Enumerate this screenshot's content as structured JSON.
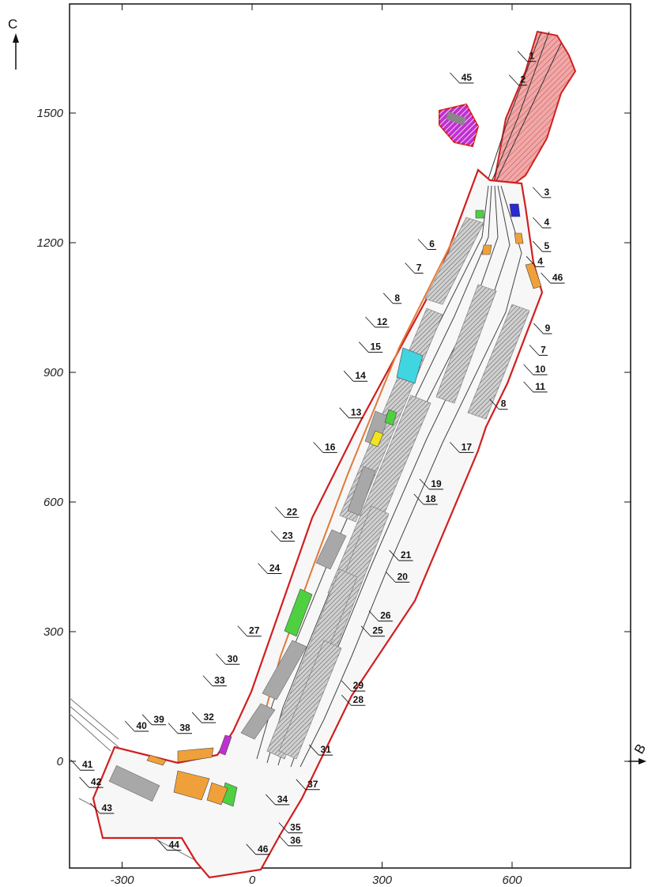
{
  "axes": {
    "x": {
      "ticks": [
        -300,
        0,
        300,
        600
      ],
      "range": [
        -420,
        840
      ]
    },
    "y": {
      "ticks": [
        0,
        300,
        600,
        900,
        1200,
        1500
      ],
      "range": [
        -235,
        1750
      ]
    }
  },
  "compass": {
    "north": "С",
    "east": "В"
  },
  "colors": {
    "boundary": "#d11f1f",
    "red_zone": "#f0a8a8",
    "cyan": "#3fd6e2",
    "blue": "#2a2ad0",
    "orange": "#f0a03a",
    "green": "#4ed040",
    "yellow": "#f2e21f",
    "magenta": "#c030d0",
    "building": "#c8c8c8",
    "track": "#444444"
  },
  "callouts": [
    {
      "label": "1",
      "x": 645,
      "y": 1625
    },
    {
      "label": "2",
      "x": 625,
      "y": 1570
    },
    {
      "label": "45",
      "x": 495,
      "y": 1575
    },
    {
      "label": "3",
      "x": 680,
      "y": 1310
    },
    {
      "label": "4",
      "x": 680,
      "y": 1240
    },
    {
      "label": "5",
      "x": 680,
      "y": 1185
    },
    {
      "label": "4",
      "x": 665,
      "y": 1150
    },
    {
      "label": "46",
      "x": 705,
      "y": 1112
    },
    {
      "label": "6",
      "x": 415,
      "y": 1190
    },
    {
      "label": "7",
      "x": 385,
      "y": 1135
    },
    {
      "label": "8",
      "x": 335,
      "y": 1065
    },
    {
      "label": "12",
      "x": 300,
      "y": 1010
    },
    {
      "label": "15",
      "x": 285,
      "y": 952
    },
    {
      "label": "14",
      "x": 250,
      "y": 885
    },
    {
      "label": "13",
      "x": 240,
      "y": 800
    },
    {
      "label": "9",
      "x": 682,
      "y": 995
    },
    {
      "label": "7",
      "x": 672,
      "y": 945
    },
    {
      "label": "10",
      "x": 665,
      "y": 900
    },
    {
      "label": "11",
      "x": 665,
      "y": 860
    },
    {
      "label": "8",
      "x": 580,
      "y": 820
    },
    {
      "label": "16",
      "x": 180,
      "y": 720
    },
    {
      "label": "17",
      "x": 495,
      "y": 720
    },
    {
      "label": "19",
      "x": 425,
      "y": 635
    },
    {
      "label": "18",
      "x": 412,
      "y": 600
    },
    {
      "label": "22",
      "x": 92,
      "y": 570
    },
    {
      "label": "23",
      "x": 82,
      "y": 515
    },
    {
      "label": "21",
      "x": 355,
      "y": 470
    },
    {
      "label": "24",
      "x": 52,
      "y": 440
    },
    {
      "label": "20",
      "x": 347,
      "y": 420
    },
    {
      "label": "26",
      "x": 308,
      "y": 330
    },
    {
      "label": "25",
      "x": 290,
      "y": 295
    },
    {
      "label": "27",
      "x": 5,
      "y": 295
    },
    {
      "label": "30",
      "x": -45,
      "y": 230
    },
    {
      "label": "29",
      "x": 245,
      "y": 168
    },
    {
      "label": "28",
      "x": 245,
      "y": 135
    },
    {
      "label": "33",
      "x": -75,
      "y": 180
    },
    {
      "label": "32",
      "x": -100,
      "y": 95
    },
    {
      "label": "39",
      "x": -215,
      "y": 90
    },
    {
      "label": "38",
      "x": -155,
      "y": 70
    },
    {
      "label": "40",
      "x": -255,
      "y": 75
    },
    {
      "label": "31",
      "x": 170,
      "y": 20
    },
    {
      "label": "41",
      "x": -380,
      "y": -15
    },
    {
      "label": "42",
      "x": -360,
      "y": -55
    },
    {
      "label": "43",
      "x": -335,
      "y": -115
    },
    {
      "label": "37",
      "x": 140,
      "y": -60
    },
    {
      "label": "34",
      "x": 70,
      "y": -95
    },
    {
      "label": "35",
      "x": 100,
      "y": -160
    },
    {
      "label": "36",
      "x": 100,
      "y": -190
    },
    {
      "label": "44",
      "x": -180,
      "y": -200
    },
    {
      "label": "46",
      "x": 25,
      "y": -210
    }
  ]
}
